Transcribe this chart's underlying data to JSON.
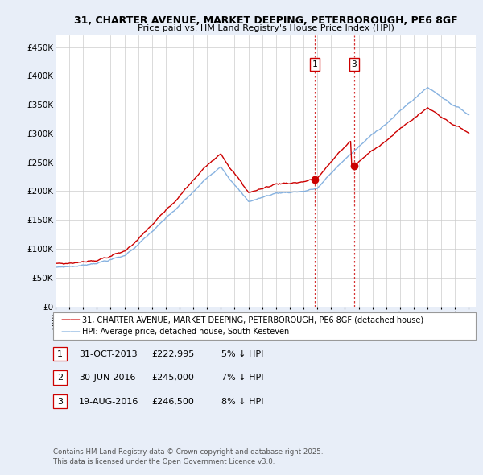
{
  "title_line1": "31, CHARTER AVENUE, MARKET DEEPING, PETERBOROUGH, PE6 8GF",
  "title_line2": "Price paid vs. HM Land Registry's House Price Index (HPI)",
  "ylim": [
    0,
    470000
  ],
  "yticks": [
    0,
    50000,
    100000,
    150000,
    200000,
    250000,
    300000,
    350000,
    400000,
    450000
  ],
  "ytick_labels": [
    "£0",
    "£50K",
    "£100K",
    "£150K",
    "£200K",
    "£250K",
    "£300K",
    "£350K",
    "£400K",
    "£450K"
  ],
  "hpi_color": "#7aaadd",
  "price_color": "#cc0000",
  "vline_color": "#cc0000",
  "dot_color": "#cc0000",
  "legend_label_price": "31, CHARTER AVENUE, MARKET DEEPING, PETERBOROUGH, PE6 8GF (detached house)",
  "legend_label_hpi": "HPI: Average price, detached house, South Kesteven",
  "annotation1_label": "1",
  "annotation1_date": "31-OCT-2013",
  "annotation1_price": "£222,995",
  "annotation1_pct": "5% ↓ HPI",
  "annotation2_label": "2",
  "annotation2_date": "30-JUN-2016",
  "annotation2_price": "£245,000",
  "annotation2_pct": "7% ↓ HPI",
  "annotation3_label": "3",
  "annotation3_date": "19-AUG-2016",
  "annotation3_price": "£246,500",
  "annotation3_pct": "8% ↓ HPI",
  "footer": "Contains HM Land Registry data © Crown copyright and database right 2025.\nThis data is licensed under the Open Government Licence v3.0.",
  "bg_color": "#e8eef8",
  "plot_bg_color": "#ffffff",
  "grid_color": "#cccccc",
  "legend_border_color": "#999999"
}
